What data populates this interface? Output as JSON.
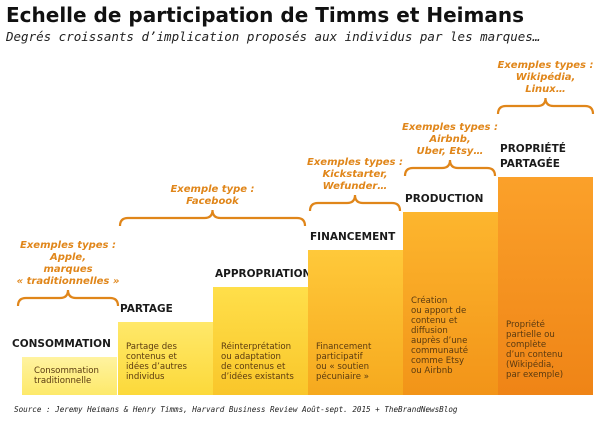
{
  "header": {
    "title": "Echelle de participation de Timms et Heimans",
    "subtitle": "Degrés croissants d’implication proposés aux individus par les marques…"
  },
  "steps": [
    {
      "label": [
        "CONSOMMATION"
      ],
      "description": [
        "Consommation",
        "traditionnelle"
      ]
    },
    {
      "label": [
        "PARTAGE"
      ],
      "description": [
        "Partage des",
        "contenus et",
        "idées d’autres",
        "individus"
      ]
    },
    {
      "label": [
        "APPROPRIATION"
      ],
      "description": [
        "Réinterprétation",
        "ou adaptation",
        "de contenus et",
        "d’idées existants"
      ]
    },
    {
      "label": [
        "FINANCEMENT"
      ],
      "description": [
        "Financement",
        "participatif",
        "ou « soutien",
        "pécuniaire »"
      ]
    },
    {
      "label": [
        "PRODUCTION"
      ],
      "description": [
        "Création",
        "ou apport de",
        "contenu et",
        "diffusion",
        "auprès d’une",
        "communauté",
        "comme Etsy",
        "ou Airbnb"
      ]
    },
    {
      "label": [
        "PROPRIÉTÉ",
        "PARTAGÉE"
      ],
      "description": [
        "Propriété",
        "partielle ou",
        "complète",
        "d’un contenu",
        "(Wikipédia,",
        "par exemple)"
      ]
    }
  ],
  "examples": [
    [
      "Exemples types :",
      "Apple,",
      "marques",
      "« traditionnelles »"
    ],
    [
      "Exemple type :",
      "Facebook"
    ],
    [
      "Exemples types :",
      "Kickstarter,",
      "Wefunder…"
    ],
    [
      "Exemples types :",
      "Airbnb,",
      "Uber, Etsy…"
    ],
    [
      "Exemples types :",
      "Wikipédia,",
      "Linux…"
    ]
  ],
  "source": "Source : Jeremy Heimans & Henry Timms, Harvard Business Review Août-sept. 2015 + TheBrandNewsBlog"
}
